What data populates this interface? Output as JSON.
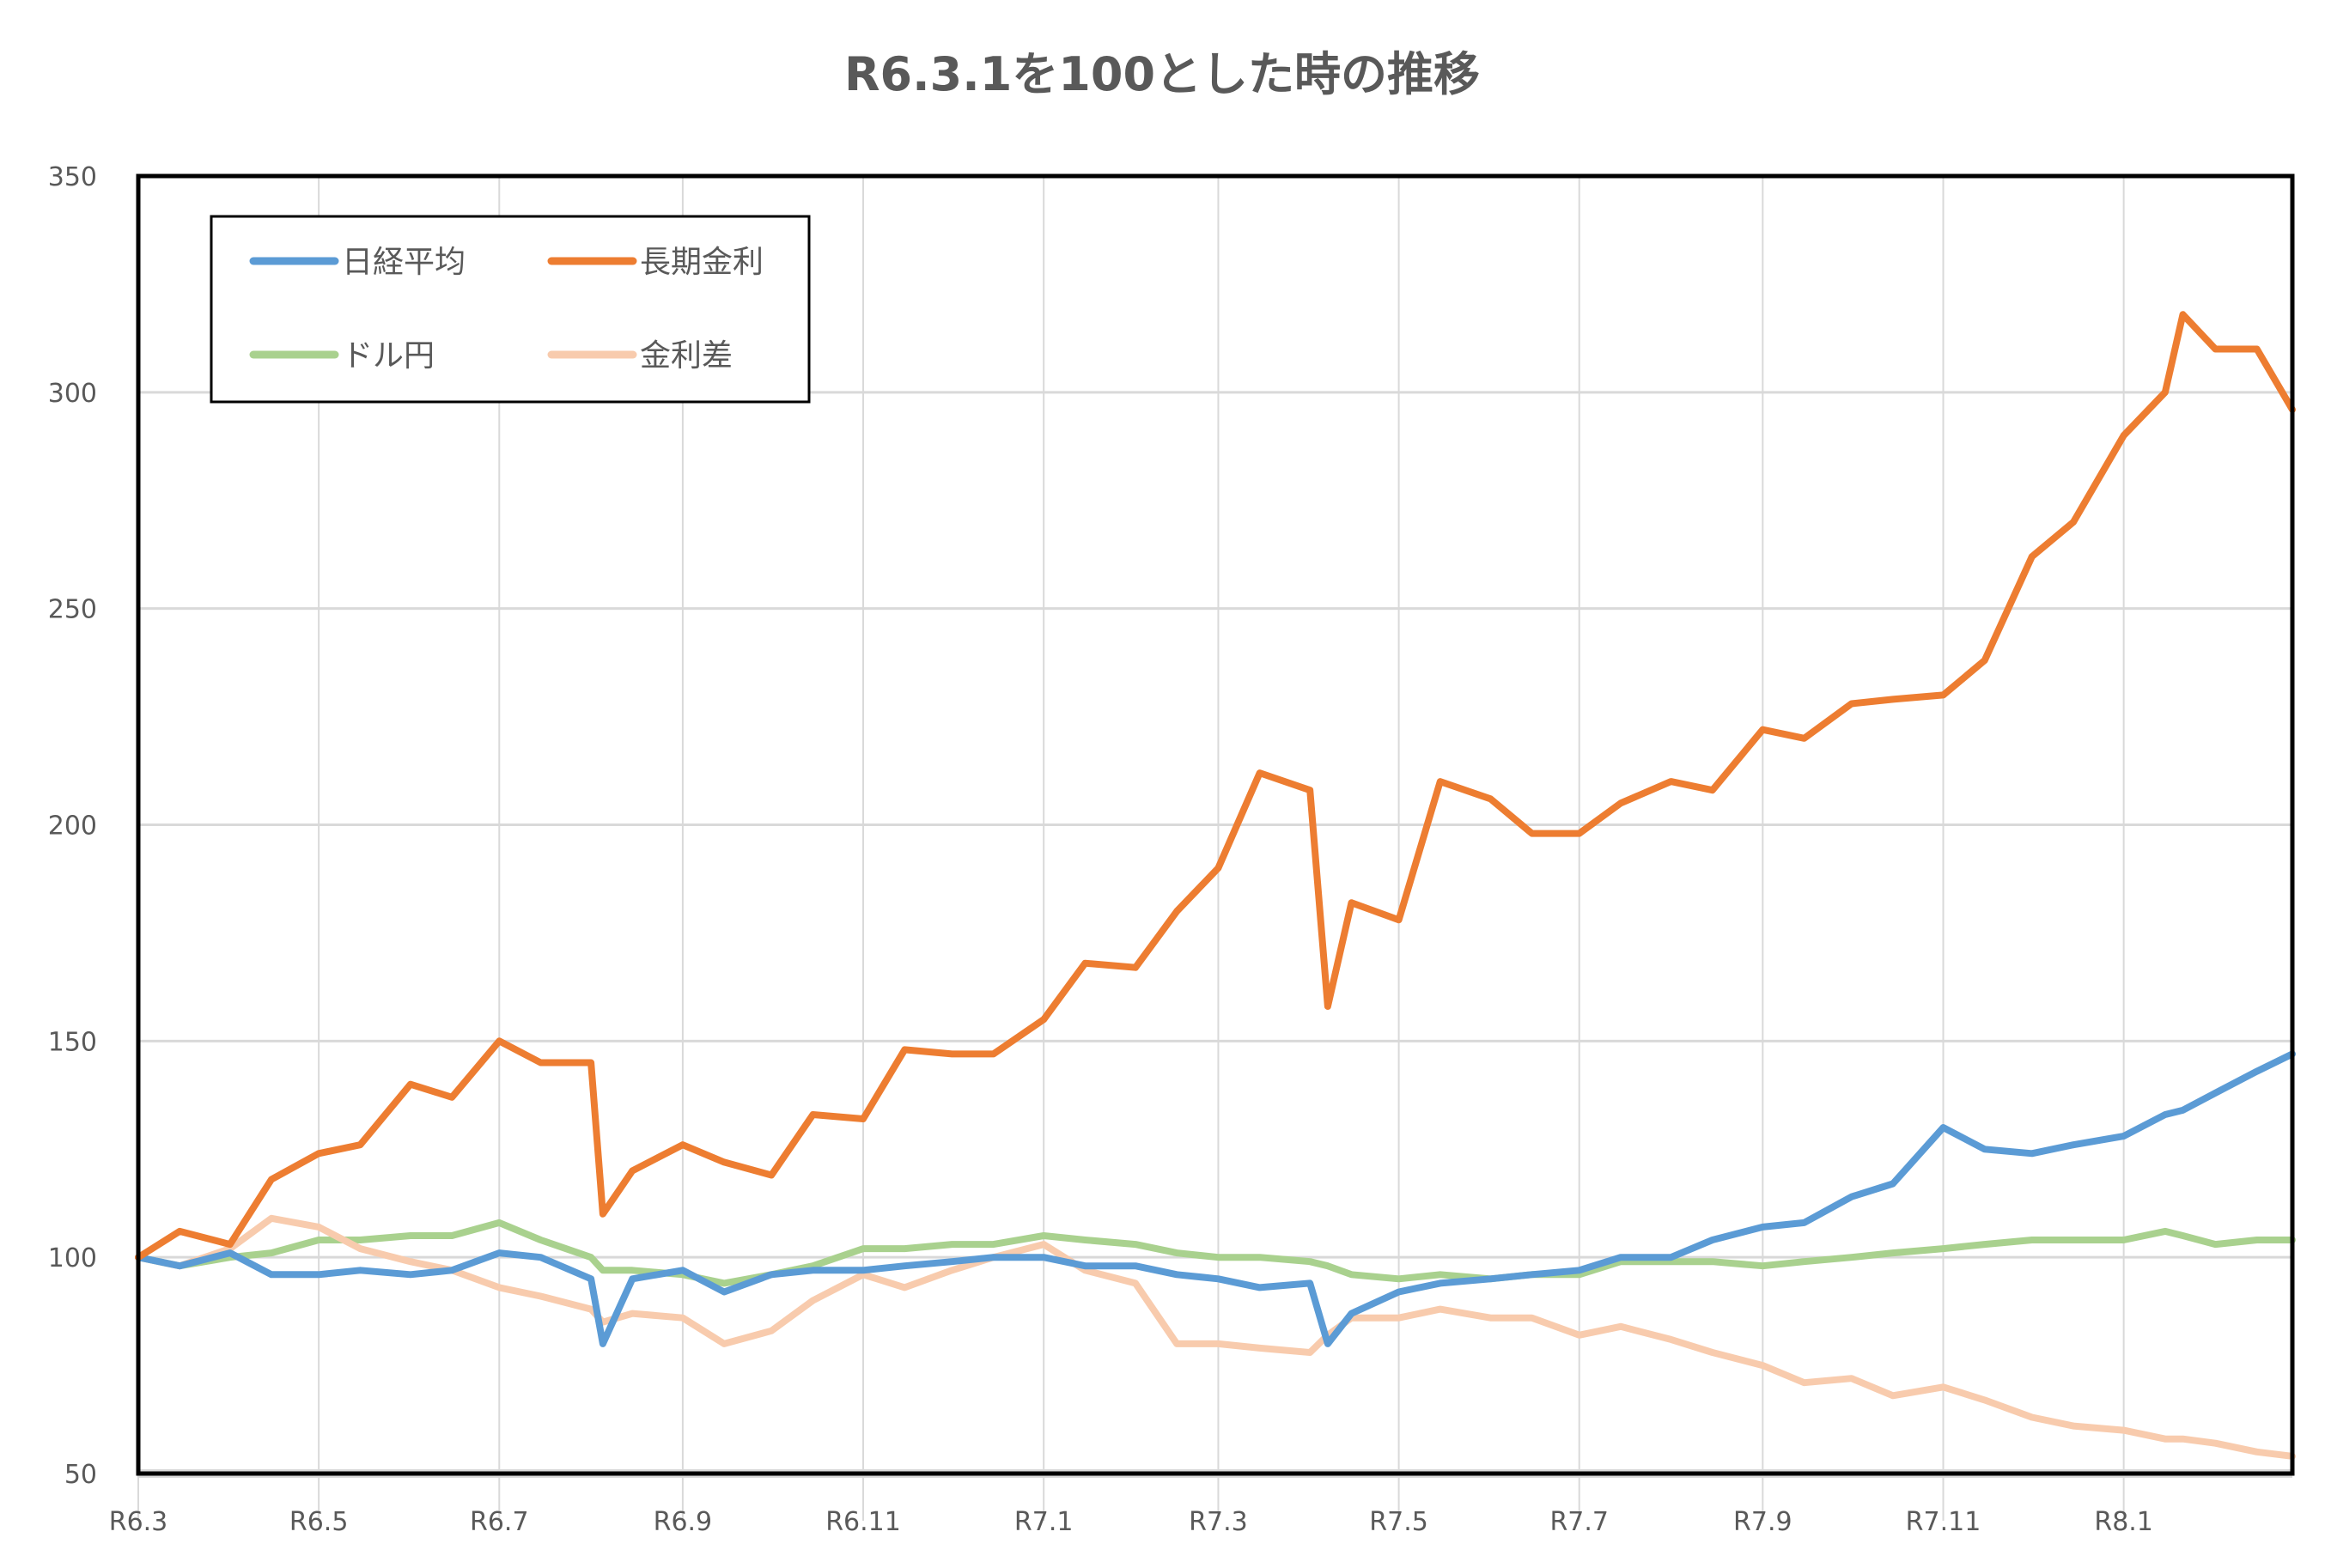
{
  "chart_data": {
    "type": "line",
    "title": "R6.3.1を100とした時の推移",
    "xlabel": "",
    "ylabel": "",
    "ylim": [
      50,
      350
    ],
    "yticks": [
      50,
      100,
      150,
      200,
      250,
      300,
      350
    ],
    "xlim": [
      "2024-03-01",
      "2026-02-27"
    ],
    "xticks": [
      {
        "date": "2024-03-01",
        "label": "R6.3"
      },
      {
        "date": "2024-05-01",
        "label": "R6.5"
      },
      {
        "date": "2024-07-01",
        "label": "R6.7"
      },
      {
        "date": "2024-09-01",
        "label": "R6.9"
      },
      {
        "date": "2024-11-01",
        "label": "R6.11"
      },
      {
        "date": "2025-01-01",
        "label": "R7.1"
      },
      {
        "date": "2025-03-01",
        "label": "R7.3"
      },
      {
        "date": "2025-05-01",
        "label": "R7.5"
      },
      {
        "date": "2025-07-01",
        "label": "R7.7"
      },
      {
        "date": "2025-09-01",
        "label": "R7.9"
      },
      {
        "date": "2025-11-01",
        "label": "R7.11"
      },
      {
        "date": "2026-01-01",
        "label": "R8.1"
      }
    ],
    "grid": true,
    "legend_position": "top-left",
    "x": [
      "2024-03-01",
      "2024-03-15",
      "2024-04-01",
      "2024-04-15",
      "2024-05-01",
      "2024-05-15",
      "2024-06-01",
      "2024-06-15",
      "2024-07-01",
      "2024-07-15",
      "2024-08-01",
      "2024-08-05",
      "2024-08-15",
      "2024-09-01",
      "2024-09-15",
      "2024-10-01",
      "2024-10-15",
      "2024-11-01",
      "2024-11-15",
      "2024-12-01",
      "2024-12-15",
      "2025-01-01",
      "2025-01-15",
      "2025-02-01",
      "2025-02-15",
      "2025-03-01",
      "2025-03-15",
      "2025-04-01",
      "2025-04-07",
      "2025-04-15",
      "2025-05-01",
      "2025-05-15",
      "2025-06-01",
      "2025-06-15",
      "2025-07-01",
      "2025-07-15",
      "2025-08-01",
      "2025-08-15",
      "2025-09-01",
      "2025-09-15",
      "2025-10-01",
      "2025-10-15",
      "2025-11-01",
      "2025-11-15",
      "2025-12-01",
      "2025-12-15",
      "2026-01-01",
      "2026-01-15",
      "2026-01-21",
      "2026-02-01",
      "2026-02-15",
      "2026-02-27"
    ],
    "series": [
      {
        "name": "日経平均",
        "color": "#5B9BD5",
        "values": [
          100,
          98,
          101,
          96,
          96,
          97,
          96,
          97,
          101,
          100,
          95,
          80,
          95,
          97,
          92,
          96,
          97,
          97,
          98,
          99,
          100,
          100,
          98,
          98,
          96,
          95,
          93,
          94,
          80,
          87,
          92,
          94,
          95,
          96,
          97,
          100,
          100,
          104,
          107,
          108,
          114,
          117,
          130,
          125,
          124,
          126,
          128,
          133,
          134,
          138,
          143,
          147
        ]
      },
      {
        "name": "長期金利",
        "color": "#ED7D31",
        "values": [
          100,
          106,
          103,
          118,
          124,
          126,
          140,
          137,
          150,
          145,
          145,
          110,
          120,
          126,
          122,
          119,
          133,
          132,
          148,
          147,
          147,
          155,
          168,
          167,
          180,
          190,
          212,
          208,
          158,
          182,
          178,
          210,
          206,
          198,
          198,
          205,
          210,
          208,
          222,
          220,
          228,
          229,
          230,
          238,
          262,
          270,
          290,
          300,
          318,
          310,
          310,
          296
        ]
      },
      {
        "name": "ドル円",
        "color": "#A9D18E",
        "values": [
          100,
          98,
          100,
          101,
          104,
          104,
          105,
          105,
          108,
          104,
          100,
          97,
          97,
          96,
          94,
          96,
          98,
          102,
          102,
          103,
          103,
          105,
          104,
          103,
          101,
          100,
          100,
          99,
          98,
          96,
          95,
          96,
          95,
          96,
          96,
          99,
          99,
          99,
          98,
          99,
          100,
          101,
          102,
          103,
          104,
          104,
          104,
          106,
          105,
          103,
          104,
          104
        ]
      },
      {
        "name": "金利差",
        "color": "#F8CBAD",
        "values": [
          100,
          98,
          102,
          109,
          107,
          102,
          99,
          97,
          93,
          91,
          88,
          85,
          87,
          86,
          80,
          83,
          90,
          96,
          93,
          97,
          100,
          103,
          97,
          94,
          80,
          80,
          79,
          78,
          82,
          86,
          86,
          88,
          86,
          86,
          82,
          84,
          81,
          78,
          75,
          71,
          72,
          68,
          70,
          67,
          63,
          61,
          60,
          58,
          58,
          57,
          55,
          54
        ]
      }
    ]
  }
}
